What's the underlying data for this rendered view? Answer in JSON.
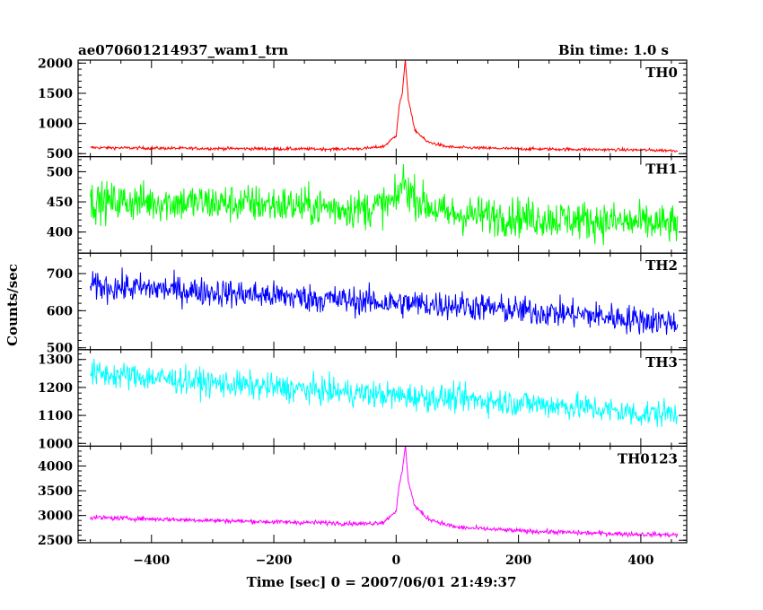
{
  "chart_data": {
    "type": "line",
    "title": "ae070601214937_wam1_trn",
    "subtitle": "Bin time: 1.0 s",
    "xlabel": "Time [sec] 0 = 2007/06/01 21:49:37",
    "ylabel": "Counts/sec",
    "xlim": [
      -520,
      475
    ],
    "xticks": [
      -400,
      -200,
      0,
      200,
      400
    ],
    "grid": false,
    "panels": [
      {
        "name": "TH0",
        "color": "#ff0000",
        "ylim": [
          450,
          2050
        ],
        "yticks": [
          500,
          1000,
          1500,
          2000
        ],
        "x": [
          -500,
          -400,
          -300,
          -200,
          -100,
          -50,
          -20,
          0,
          5,
          10,
          15,
          20,
          30,
          50,
          80,
          100,
          200,
          300,
          400,
          460
        ],
        "y": [
          600,
          590,
          585,
          580,
          575,
          585,
          620,
          800,
          1300,
          1500,
          2050,
          1400,
          900,
          700,
          620,
          600,
          580,
          570,
          560,
          550
        ],
        "noise": 25
      },
      {
        "name": "TH1",
        "color": "#00ff00",
        "ylim": [
          365,
          525
        ],
        "yticks": [
          400,
          450,
          500
        ],
        "x": [
          -500,
          -400,
          -300,
          -200,
          -100,
          -50,
          0,
          10,
          20,
          40,
          80,
          200,
          300,
          400,
          460
        ],
        "y": [
          450,
          450,
          448,
          446,
          440,
          438,
          450,
          485,
          470,
          450,
          430,
          425,
          420,
          415,
          412
        ],
        "noise": 32
      },
      {
        "name": "TH2",
        "color": "#0000ff",
        "ylim": [
          495,
          755
        ],
        "yticks": [
          500,
          600,
          700
        ],
        "x": [
          -500,
          -400,
          -300,
          -200,
          -100,
          0,
          100,
          200,
          300,
          400,
          460
        ],
        "y": [
          665,
          660,
          650,
          640,
          630,
          620,
          615,
          600,
          590,
          575,
          570
        ],
        "noise": 38
      },
      {
        "name": "TH3",
        "color": "#00ffff",
        "ylim": [
          990,
          1335
        ],
        "yticks": [
          1000,
          1100,
          1200,
          1300
        ],
        "x": [
          -500,
          -400,
          -300,
          -200,
          -100,
          0,
          100,
          200,
          300,
          400,
          460
        ],
        "y": [
          1250,
          1235,
          1215,
          1200,
          1185,
          1170,
          1160,
          1145,
          1130,
          1105,
          1110
        ],
        "noise": 48
      },
      {
        "name": "TH0123",
        "color": "#ff00ff",
        "ylim": [
          2450,
          4400
        ],
        "yticks": [
          2500,
          3000,
          3500,
          4000
        ],
        "x": [
          -500,
          -400,
          -300,
          -200,
          -100,
          -50,
          -20,
          0,
          5,
          10,
          15,
          20,
          30,
          50,
          80,
          100,
          200,
          300,
          400,
          460
        ],
        "y": [
          2960,
          2930,
          2900,
          2870,
          2850,
          2830,
          2870,
          3100,
          3600,
          3900,
          4400,
          3700,
          3200,
          2950,
          2820,
          2760,
          2690,
          2650,
          2620,
          2610
        ],
        "noise": 45
      }
    ]
  }
}
